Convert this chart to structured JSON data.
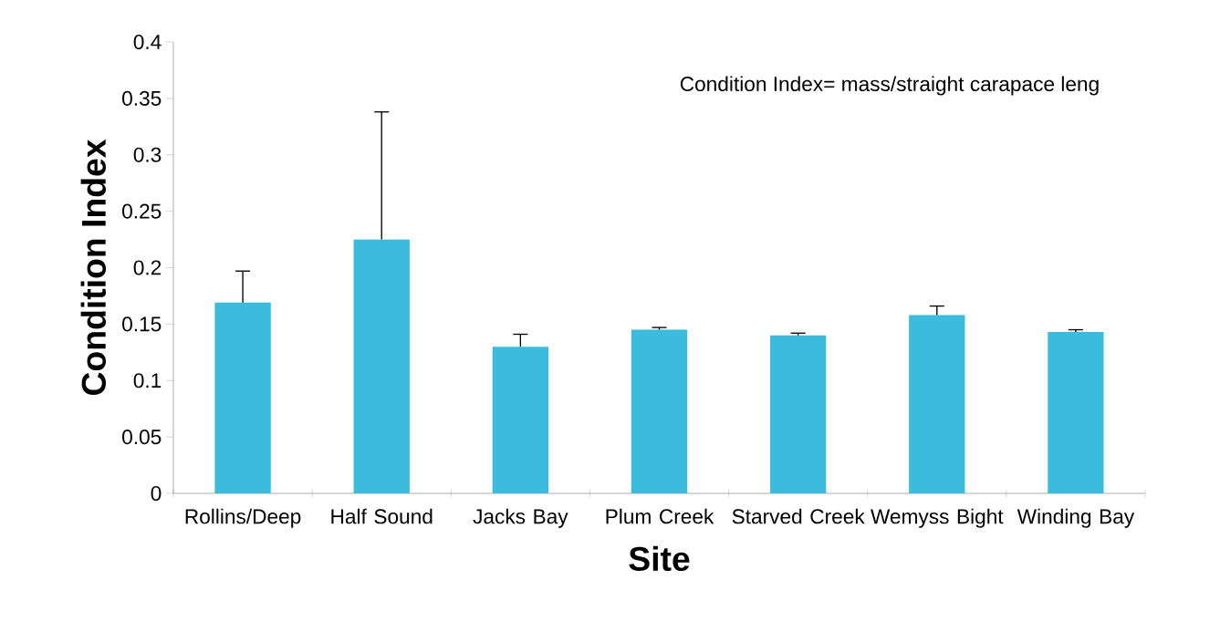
{
  "chart_data": {
    "type": "bar",
    "xlabel": "Site",
    "ylabel": "Condition Index",
    "categories": [
      "Rollins/Deep",
      "Half Sound",
      "Jacks Bay",
      "Plum Creek",
      "Starved Creek",
      "Wemyss Bight",
      "Winding Bay"
    ],
    "values": [
      0.169,
      0.225,
      0.13,
      0.145,
      0.14,
      0.158,
      0.143
    ],
    "errors": [
      [
        0.169,
        0.197
      ],
      [
        0.225,
        0.338
      ],
      [
        0.13,
        0.141
      ],
      [
        0.145,
        0.147
      ],
      [
        0.14,
        0.142
      ],
      [
        0.158,
        0.166
      ],
      [
        0.143,
        0.145
      ]
    ],
    "color": "#3bbcdc",
    "ylim": [
      0,
      0.4
    ],
    "yticks": [
      0,
      0.05,
      0.1,
      0.15,
      0.2,
      0.25,
      0.3,
      0.35,
      0.4
    ],
    "annotations": [
      "Condition Index= mass/straight carapace leng"
    ]
  }
}
